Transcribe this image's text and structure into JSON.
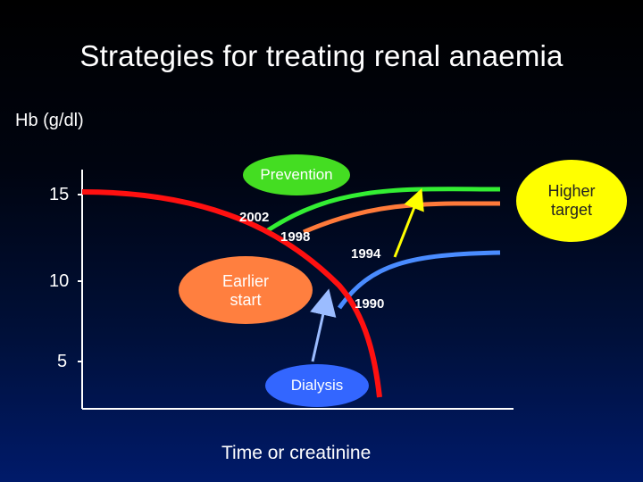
{
  "slide": {
    "title": "Strategies for treating renal anaemia",
    "y_axis_label": "Hb (g/dl)",
    "y_ticks": [
      "15",
      "10",
      "5"
    ],
    "x_axis_label": "Time or creatinine"
  },
  "labels": {
    "prevention": "Prevention",
    "higher_target_line1": "Higher",
    "higher_target_line2": "target",
    "earlier_start_line1": "Earlier",
    "earlier_start_line2": "start",
    "dialysis": "Dialysis"
  },
  "years": {
    "y2002": "2002",
    "y1998": "1998",
    "y1994": "1994",
    "y1990": "1990"
  },
  "colors": {
    "decline_curve": "#ff1010",
    "curve_2002": "#33ee33",
    "curve_1998": "#ff7a3a",
    "curve_1994": "#4a8cff",
    "yellow_arrow": "#ffff00",
    "prevention_bubble": "#44dd22",
    "higher_target_bubble": "#ffff00",
    "earlier_start_bubble": "#ff7f3f",
    "dialysis_bubble": "#3366ff",
    "axis": "#ffffff"
  }
}
